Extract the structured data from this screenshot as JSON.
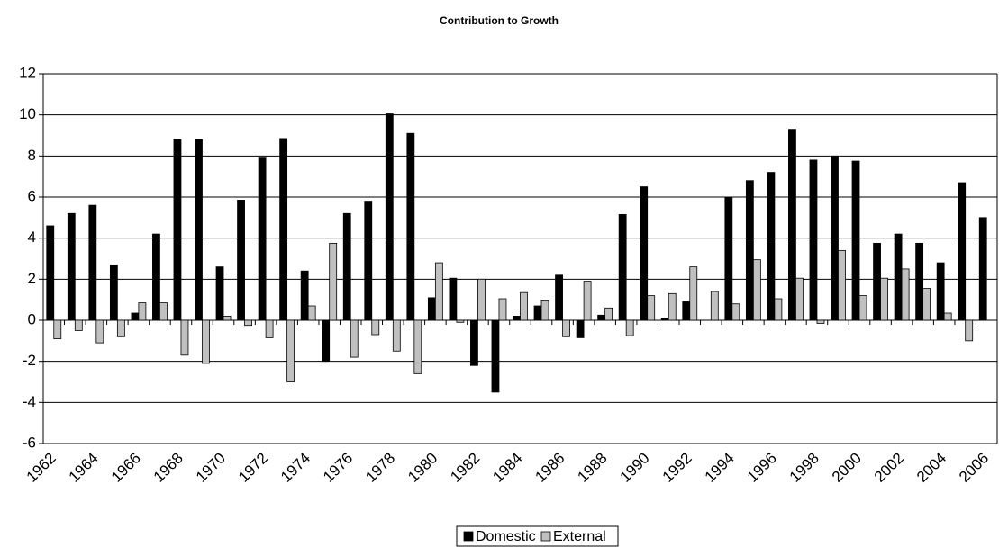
{
  "chart_data": {
    "type": "bar",
    "title": "Contribution to Growth",
    "categories": [
      "1962",
      null,
      "1964",
      null,
      "1966",
      null,
      "1968",
      null,
      "1970",
      null,
      "1972",
      null,
      "1974",
      null,
      "1976",
      null,
      "1978",
      null,
      "1980",
      null,
      "1982",
      null,
      "1984",
      null,
      "1986",
      null,
      "1988",
      null,
      "1990",
      null,
      "1992",
      null,
      "1994",
      null,
      "1996",
      null,
      "1998",
      null,
      "2000",
      null,
      "2002",
      null,
      "2004",
      null,
      "2006"
    ],
    "series": [
      {
        "name": "Domestic",
        "color": "#000000",
        "values": [
          4.6,
          5.2,
          5.6,
          2.7,
          0.35,
          4.2,
          8.8,
          8.8,
          2.6,
          5.85,
          7.9,
          8.85,
          2.4,
          -2.0,
          5.2,
          5.8,
          10.05,
          9.1,
          1.1,
          2.05,
          -2.2,
          -3.5,
          0.2,
          0.7,
          2.2,
          -0.85,
          0.25,
          5.15,
          6.5,
          0.1,
          0.9,
          0.0,
          6.0,
          6.8,
          7.2,
          9.3,
          7.8,
          8.0,
          7.75,
          3.75,
          4.2,
          3.75,
          2.8,
          6.7,
          5.0
        ]
      },
      {
        "name": "External",
        "color": "#c0c0c0",
        "values": [
          -0.9,
          -0.5,
          -1.1,
          -0.8,
          0.85,
          0.85,
          -1.7,
          -2.1,
          0.2,
          -0.25,
          -0.85,
          -3.0,
          0.7,
          3.75,
          -1.8,
          -0.7,
          -1.5,
          -2.6,
          2.8,
          -0.1,
          2.0,
          1.05,
          1.35,
          0.95,
          -0.8,
          1.9,
          0.6,
          -0.75,
          1.2,
          1.3,
          2.6,
          1.4,
          0.8,
          2.95,
          1.05,
          2.05,
          -0.15,
          3.4,
          1.2,
          2.05,
          2.5,
          1.55,
          0.35,
          -1.0,
          null
        ]
      }
    ],
    "ylim": [
      -6,
      12
    ],
    "yticks": [
      -6,
      -4,
      -2,
      0,
      2,
      4,
      6,
      8,
      10,
      12
    ],
    "grid": true,
    "legend": "bottom"
  }
}
